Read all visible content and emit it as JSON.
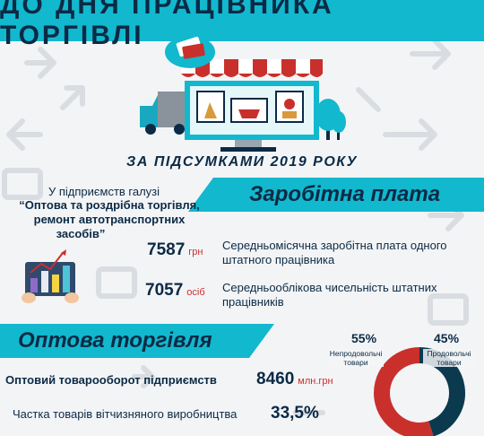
{
  "header": {
    "title": "ДО ДНЯ ПРАЦІВНИКА ТОРГІВЛІ"
  },
  "subtitle": "ЗА ПІДСУМКАМИ 2019 РОКУ",
  "salary_section": {
    "title": "Заробітна плата",
    "industry_intro": "У підприємств галузі",
    "industry_name_line1": "“Оптова та роздрібна торгівля,",
    "industry_name_line2": "ремонт автотранспортних",
    "industry_name_line3": "засобів”",
    "metrics": [
      {
        "value": "7587",
        "unit": "грн",
        "desc_line1": "Середньомісячна заробітна плата одного",
        "desc_line2": "штатного працівника"
      },
      {
        "value": "7057",
        "unit": "осіб",
        "desc_line1": "Середньооблікова чисельність штатних",
        "desc_line2": "працівників"
      }
    ]
  },
  "wholesale_section": {
    "title": "Оптова торгівля",
    "turnover_label": "Оптовий товарооборот підприємств",
    "turnover_value": "8460",
    "turnover_unit": "млн.грн",
    "domestic_label": "Частка товарів вітчизняного виробництва",
    "domestic_value": "33,5%"
  },
  "chart_data": {
    "type": "pie",
    "categories": [
      "Непродовольчі товари",
      "Продовольчі товари"
    ],
    "values": [
      55,
      45
    ],
    "labels": [
      "55%",
      "45%"
    ],
    "colors": [
      "#c9302c",
      "#0b3a4f"
    ]
  },
  "colors": {
    "accent": "#12b8ce",
    "dark": "#0b2a45",
    "red": "#c9302c"
  }
}
